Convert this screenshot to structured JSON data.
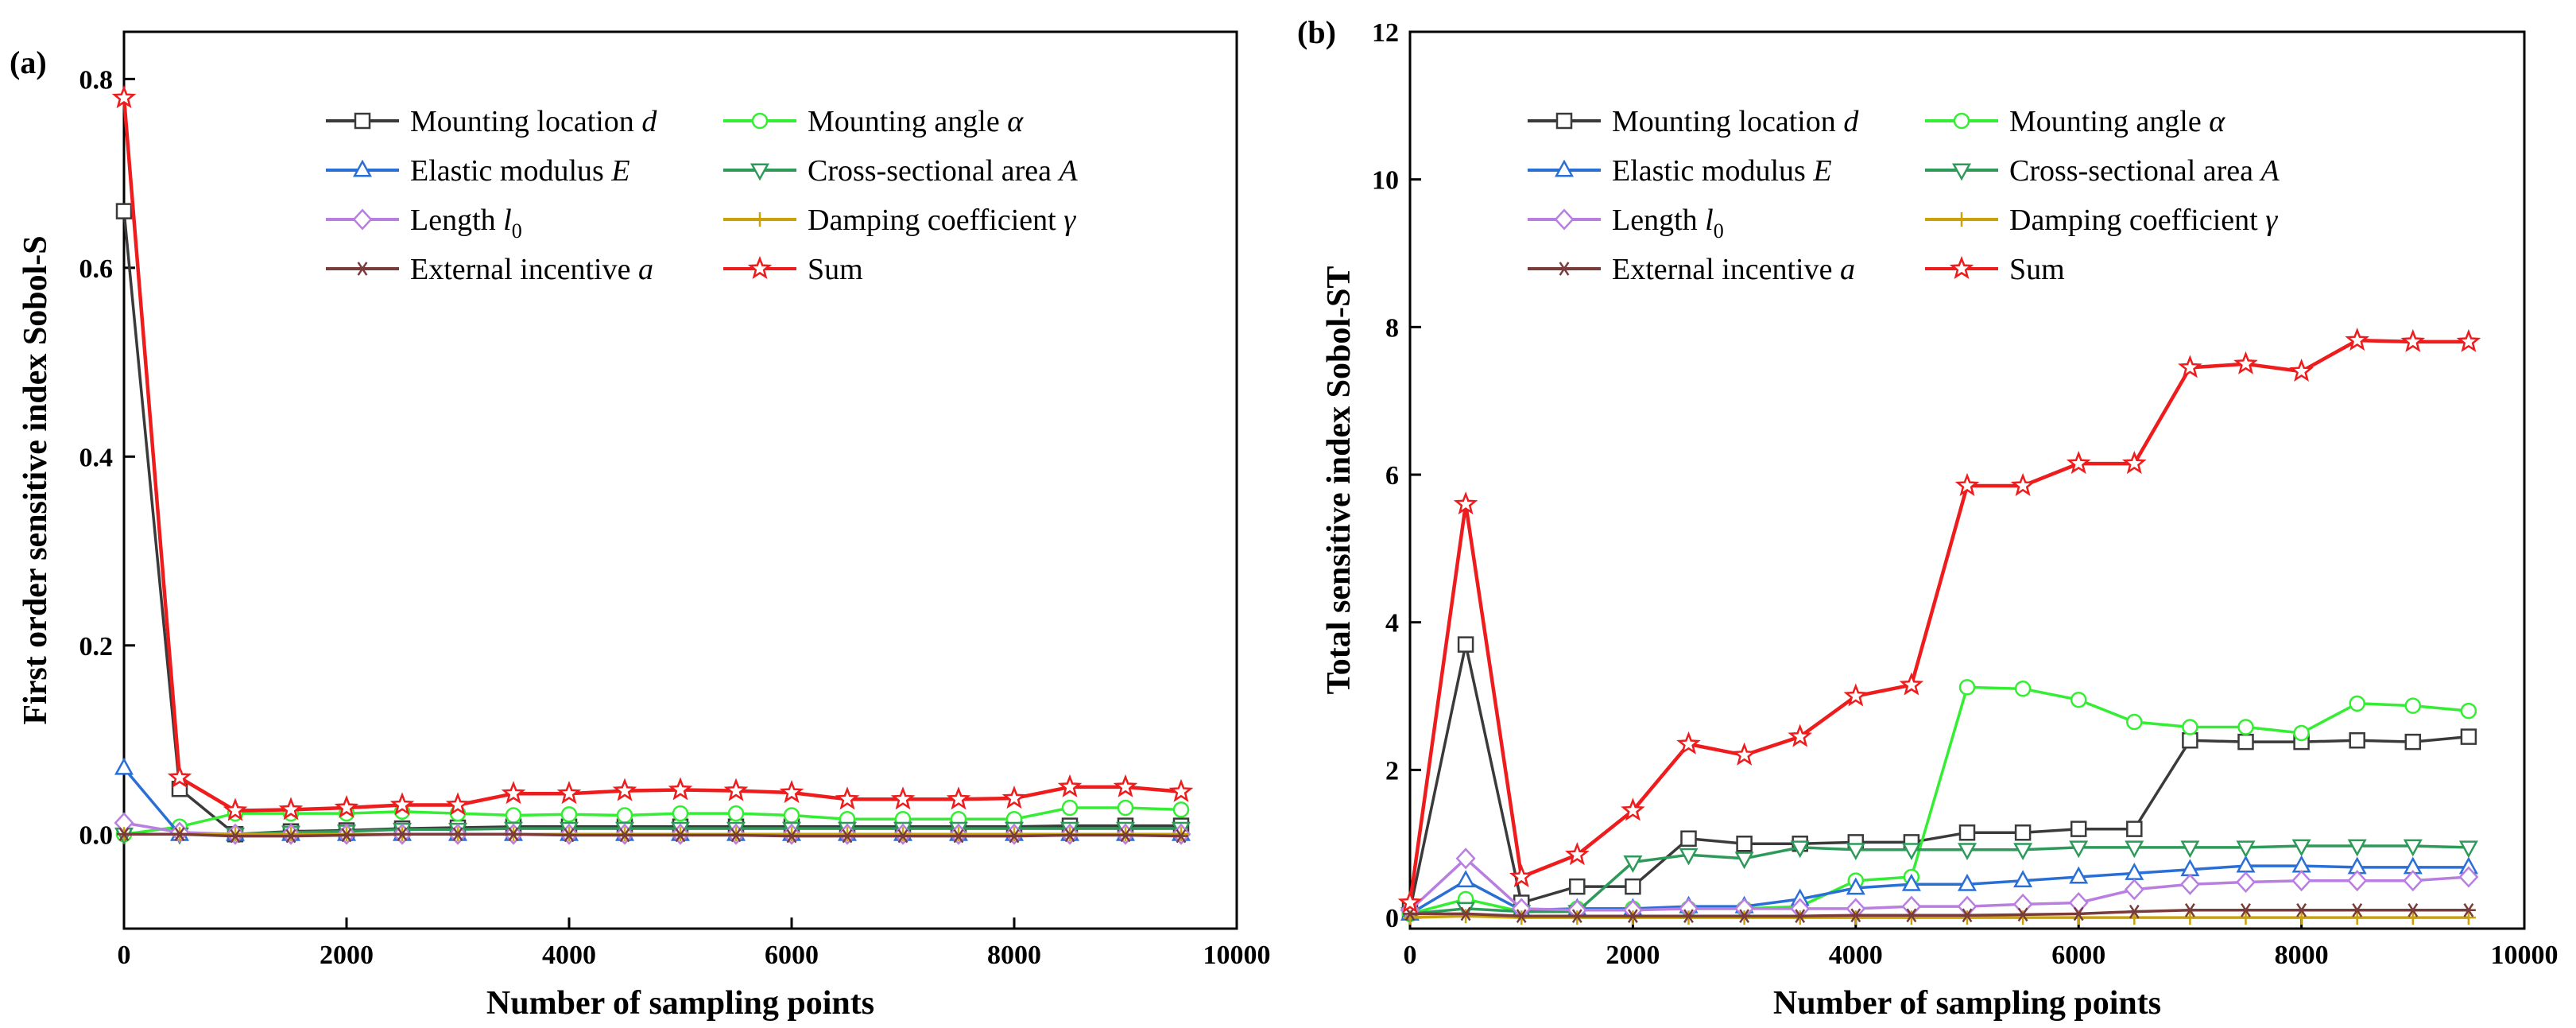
{
  "chart_data": [
    {
      "type": "line",
      "panel_label": "(a)",
      "xlabel": "Number of sampling points",
      "ylabel": "First order sensitive index Sobol-S",
      "xlim": [
        0,
        10000
      ],
      "ylim": [
        -0.1,
        0.85
      ],
      "xticks": [
        0,
        2000,
        4000,
        6000,
        8000,
        10000
      ],
      "xtick_labels": [
        "0",
        "2000",
        "4000",
        "6000",
        "8000",
        "10000"
      ],
      "yticks": [
        0.0,
        0.2,
        0.4,
        0.6,
        0.8
      ],
      "ytick_labels": [
        "0.0",
        "0.2",
        "0.4",
        "0.6",
        "0.8"
      ],
      "x": [
        0,
        500,
        1000,
        1500,
        2000,
        2500,
        3000,
        3500,
        4000,
        4500,
        5000,
        5500,
        6000,
        6500,
        7000,
        7500,
        8000,
        8500,
        9000,
        9500
      ],
      "legend_placement": "top-right",
      "series": [
        {
          "key": "d",
          "name": "Mounting location",
          "sym": "d",
          "color": "#3a3a3a",
          "marker": "square",
          "values": [
            0.66,
            0.048,
            0.0,
            0.003,
            0.004,
            0.006,
            0.007,
            0.008,
            0.008,
            0.008,
            0.008,
            0.008,
            0.008,
            0.008,
            0.008,
            0.008,
            0.008,
            0.009,
            0.009,
            0.009
          ]
        },
        {
          "key": "alpha",
          "name": "Mounting angle",
          "sym": "α",
          "color": "#33ee33",
          "marker": "circle",
          "values": [
            0.0,
            0.008,
            0.022,
            0.022,
            0.022,
            0.024,
            0.022,
            0.02,
            0.021,
            0.02,
            0.022,
            0.022,
            0.02,
            0.016,
            0.016,
            0.016,
            0.016,
            0.028,
            0.028,
            0.026
          ]
        },
        {
          "key": "E",
          "name": "Elastic modulus",
          "sym": "E",
          "color": "#2a6fd6",
          "marker": "triangle-up",
          "values": [
            0.07,
            0.0,
            0.0,
            0.0,
            0.0,
            0.0,
            0.0,
            0.0,
            0.0,
            0.0,
            0.0,
            0.0,
            0.0,
            0.0,
            0.0,
            0.0,
            0.0,
            0.0,
            0.0,
            0.0
          ]
        },
        {
          "key": "A",
          "name": "Cross-sectional area",
          "sym": "A",
          "color": "#2e9a5a",
          "marker": "triangle-down",
          "values": [
            0.0,
            0.0,
            0.0,
            0.002,
            0.003,
            0.005,
            0.005,
            0.006,
            0.006,
            0.006,
            0.006,
            0.006,
            0.006,
            0.006,
            0.006,
            0.006,
            0.006,
            0.006,
            0.006,
            0.006
          ]
        },
        {
          "key": "l0",
          "name": "Length",
          "sym": "l",
          "sub": "0",
          "color": "#b87ee0",
          "marker": "diamond",
          "values": [
            0.012,
            0.002,
            0.0,
            0.0,
            0.0,
            0.0,
            0.0,
            0.0,
            0.0,
            0.0,
            0.0,
            0.0,
            0.0,
            0.0,
            0.0,
            0.0,
            0.0,
            0.0,
            0.0,
            0.0
          ]
        },
        {
          "key": "gamma",
          "name": "Damping coefficient",
          "sym": "γ",
          "color": "#c9a20a",
          "marker": "plus",
          "values": [
            0.0,
            0.0,
            0.0,
            0.0,
            0.0,
            0.0,
            0.0,
            0.0,
            0.0,
            0.0,
            0.0,
            0.0,
            0.0,
            0.0,
            0.0,
            0.0,
            0.0,
            0.0,
            0.0,
            0.0
          ]
        },
        {
          "key": "a",
          "name": "External incentive",
          "sym": "a",
          "color": "#7a3b3b",
          "marker": "star6",
          "values": [
            0.0,
            0.0,
            -0.002,
            -0.002,
            -0.001,
            0.0,
            0.0,
            0.0,
            -0.001,
            -0.001,
            -0.001,
            -0.001,
            -0.002,
            -0.002,
            -0.002,
            -0.002,
            -0.002,
            -0.001,
            -0.001,
            -0.002
          ]
        },
        {
          "key": "sum",
          "name": "Sum",
          "sym": "",
          "color": "#ee1c1c",
          "marker": "star",
          "values": [
            0.78,
            0.06,
            0.025,
            0.026,
            0.028,
            0.031,
            0.031,
            0.043,
            0.043,
            0.046,
            0.047,
            0.046,
            0.044,
            0.037,
            0.037,
            0.037,
            0.038,
            0.05,
            0.05,
            0.045
          ]
        }
      ]
    },
    {
      "type": "line",
      "panel_label": "(b)",
      "xlabel": "Number of sampling points",
      "ylabel": "Total sensitive index Sobol-ST",
      "xlim": [
        0,
        10000
      ],
      "ylim": [
        -0.15,
        12
      ],
      "xticks": [
        0,
        2000,
        4000,
        6000,
        8000,
        10000
      ],
      "xtick_labels": [
        "0",
        "2000",
        "4000",
        "6000",
        "8000",
        "10000"
      ],
      "yticks": [
        0,
        2,
        4,
        6,
        8,
        10,
        12
      ],
      "ytick_labels": [
        "0",
        "2",
        "4",
        "6",
        "8",
        "10",
        "12"
      ],
      "x": [
        0,
        500,
        1000,
        1500,
        2000,
        2500,
        3000,
        3500,
        4000,
        4500,
        5000,
        5500,
        6000,
        6500,
        7000,
        7500,
        8000,
        8500,
        9000,
        9500
      ],
      "legend_placement": "top-left",
      "series": [
        {
          "key": "d",
          "name": "Mounting location",
          "sym": "d",
          "color": "#3a3a3a",
          "marker": "square",
          "values": [
            0.1,
            3.7,
            0.2,
            0.42,
            0.42,
            1.07,
            1.0,
            1.0,
            1.02,
            1.02,
            1.15,
            1.15,
            1.2,
            1.2,
            2.4,
            2.38,
            2.38,
            2.4,
            2.38,
            2.45
          ]
        },
        {
          "key": "alpha",
          "name": "Mounting angle",
          "sym": "α",
          "color": "#33ee33",
          "marker": "circle",
          "values": [
            0.05,
            0.25,
            0.08,
            0.12,
            0.12,
            0.12,
            0.12,
            0.15,
            0.5,
            0.55,
            3.12,
            3.1,
            2.95,
            2.65,
            2.58,
            2.58,
            2.5,
            2.9,
            2.87,
            2.8
          ]
        },
        {
          "key": "E",
          "name": "Elastic modulus",
          "sym": "E",
          "color": "#2a6fd6",
          "marker": "triangle-up",
          "values": [
            0.05,
            0.5,
            0.1,
            0.12,
            0.12,
            0.15,
            0.15,
            0.25,
            0.4,
            0.45,
            0.45,
            0.5,
            0.55,
            0.6,
            0.65,
            0.7,
            0.7,
            0.68,
            0.68,
            0.68
          ]
        },
        {
          "key": "A",
          "name": "Cross-sectional area",
          "sym": "A",
          "color": "#2e9a5a",
          "marker": "triangle-down",
          "values": [
            0.05,
            0.12,
            0.08,
            0.08,
            0.75,
            0.85,
            0.8,
            0.95,
            0.92,
            0.92,
            0.92,
            0.92,
            0.95,
            0.95,
            0.95,
            0.95,
            0.97,
            0.97,
            0.97,
            0.95
          ]
        },
        {
          "key": "l0",
          "name": "Length",
          "sym": "l",
          "sub": "0",
          "color": "#b87ee0",
          "marker": "diamond",
          "values": [
            0.1,
            0.8,
            0.12,
            0.1,
            0.1,
            0.12,
            0.12,
            0.12,
            0.12,
            0.15,
            0.15,
            0.18,
            0.2,
            0.38,
            0.45,
            0.48,
            0.5,
            0.5,
            0.5,
            0.55
          ]
        },
        {
          "key": "gamma",
          "name": "Damping coefficient",
          "sym": "γ",
          "color": "#c9a20a",
          "marker": "plus",
          "values": [
            0.0,
            0.02,
            0.0,
            0.0,
            0.0,
            0.0,
            0.0,
            0.0,
            0.0,
            0.0,
            0.0,
            0.0,
            0.0,
            0.0,
            0.0,
            0.0,
            0.0,
            0.0,
            0.0,
            0.0
          ]
        },
        {
          "key": "a",
          "name": "External incentive",
          "sym": "a",
          "color": "#7a3b3b",
          "marker": "star6",
          "values": [
            0.05,
            0.05,
            0.02,
            0.02,
            0.02,
            0.02,
            0.02,
            0.02,
            0.03,
            0.03,
            0.03,
            0.04,
            0.05,
            0.08,
            0.1,
            0.1,
            0.1,
            0.1,
            0.1,
            0.1
          ]
        },
        {
          "key": "sum",
          "name": "Sum",
          "sym": "",
          "color": "#ee1c1c",
          "marker": "star",
          "values": [
            0.2,
            5.6,
            0.55,
            0.85,
            1.45,
            2.35,
            2.2,
            2.45,
            3.0,
            3.15,
            5.85,
            5.85,
            6.15,
            6.15,
            7.45,
            7.5,
            7.4,
            7.82,
            7.8,
            7.8
          ]
        }
      ]
    }
  ]
}
